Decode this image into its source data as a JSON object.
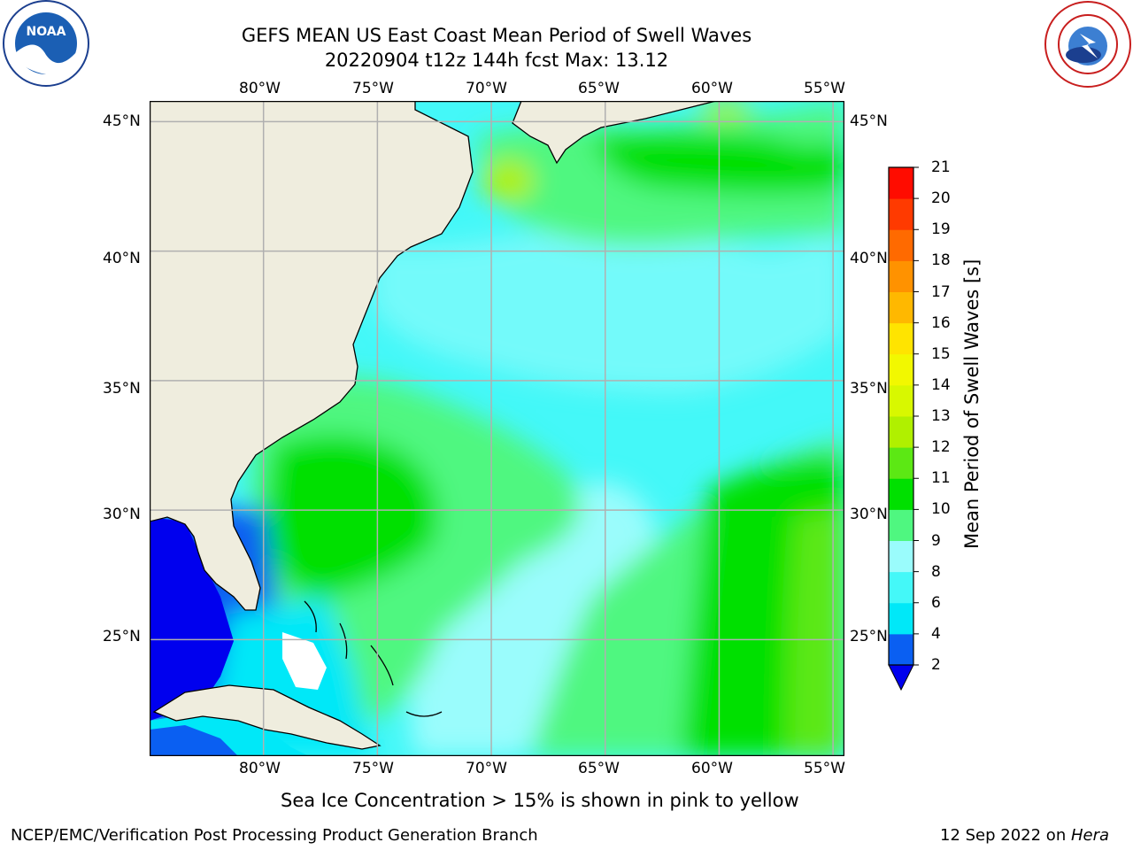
{
  "title": {
    "line1": "GEFS MEAN US East Coast Mean Period of Swell Waves",
    "line2": "20220904 t12z 144h fcst   Max: 13.12"
  },
  "map": {
    "lon_labels": [
      "80°W",
      "75°W",
      "70°W",
      "65°W",
      "60°W",
      "55°W"
    ],
    "lat_labels": [
      "45°N",
      "40°N",
      "35°N",
      "30°N",
      "25°N"
    ],
    "extent": {
      "lon_min": -85,
      "lon_max": -54.5,
      "lat_min": 20.5,
      "lat_max": 45.8
    },
    "colors": {
      "land": "#efedde",
      "grid": "#b0b0b0",
      "coast": "#000000"
    }
  },
  "colorbar": {
    "label": "Mean Period of Swell Waves [s]",
    "ticks": [
      "2",
      "4",
      "6",
      "8",
      "9",
      "10",
      "11",
      "12",
      "13",
      "14",
      "15",
      "16",
      "17",
      "18",
      "19",
      "20",
      "21"
    ],
    "colors": [
      "#0a5ff2",
      "#00e8f8",
      "#44f8f8",
      "#9afcfc",
      "#4ff780",
      "#00e000",
      "#5ce814",
      "#b0f000",
      "#d8f800",
      "#f2f800",
      "#ffe400",
      "#ffb800",
      "#ff9200",
      "#ff6a00",
      "#ff3a00",
      "#ff0c00"
    ],
    "under_color": "#0000ee"
  },
  "logos": {
    "noaa": "NOAA",
    "nws": "NATIONAL WEATHER SERVICE"
  },
  "notes": {
    "ice": "Sea Ice Concentration > 15% is shown in pink to yellow",
    "credit": "NCEP/EMC/Verification Post Processing Product Generation Branch",
    "date": "12 Sep 2022 on ",
    "machine": "Hera"
  }
}
